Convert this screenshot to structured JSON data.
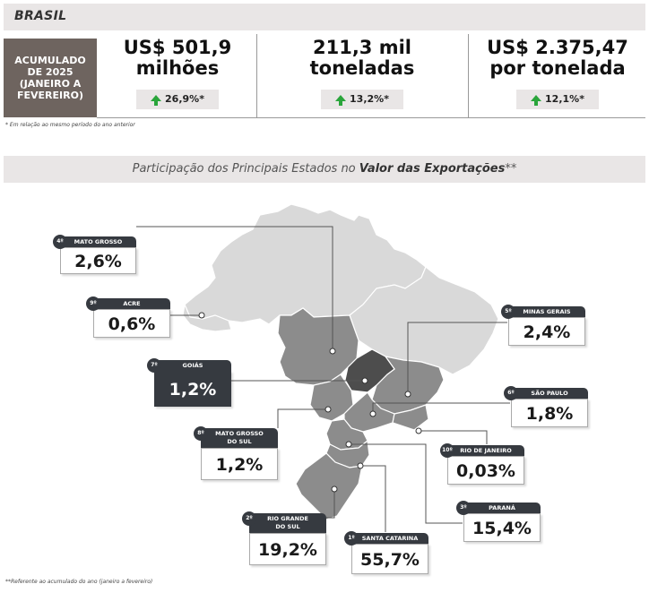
{
  "header": {
    "title": "BRASIL"
  },
  "accumulated_label": "ACUMULADO DE 2025 (JANEIRO A FEVEREIRO)",
  "kpis": [
    {
      "value_line1": "US$ 501,9",
      "value_line2": "milhões",
      "delta": "26,9%*"
    },
    {
      "value_line1": "211,3 mil",
      "value_line2": "toneladas",
      "delta": "13,2%*"
    },
    {
      "value_line1": "US$ 2.375,47",
      "value_line2": "por tonelada",
      "delta": "12,1%*"
    }
  ],
  "note_comparison": "* Em relação ao mesmo período do ano anterior",
  "section_title_prefix": "Participação dos Principais Estados no ",
  "section_title_bold": "Valor das Exportações",
  "section_title_suffix": "**",
  "note_period": "**Referente ao acumulado do ano (janeiro a fevereiro)",
  "states": [
    {
      "rank": "4º",
      "name": "MATO GROSSO",
      "value": "2,6%"
    },
    {
      "rank": "9º",
      "name": "ACRE",
      "value": "0,6%"
    },
    {
      "rank": "7º",
      "name": "GOIÁS",
      "value": "1,2%"
    },
    {
      "rank": "8º",
      "name_line1": "MATO GROSSO",
      "name_line2": "DO SUL",
      "value": "1,2%"
    },
    {
      "rank": "2º",
      "name_line1": "RIO GRANDE",
      "name_line2": "DO SUL",
      "value": "19,2%"
    },
    {
      "rank": "1º",
      "name": "SANTA CATARINA",
      "value": "55,7%"
    },
    {
      "rank": "3º",
      "name": "PARANÁ",
      "value": "15,4%"
    },
    {
      "rank": "10º",
      "name": "RIO DE JANEIRO",
      "value": "0,03%"
    },
    {
      "rank": "6º",
      "name": "SÃO PAULO",
      "value": "1,8%"
    },
    {
      "rank": "5º",
      "name": "MINAS GERAIS",
      "value": "2,4%"
    }
  ],
  "colors": {
    "band_bg": "#e9e6e6",
    "accumulated_bg": "#6e645f",
    "up_arrow": "#2aa53b",
    "card_header": "#363a40",
    "map_light": "#d9d9d9",
    "map_mid": "#8c8c8c",
    "map_dark": "#4d4d4d"
  }
}
